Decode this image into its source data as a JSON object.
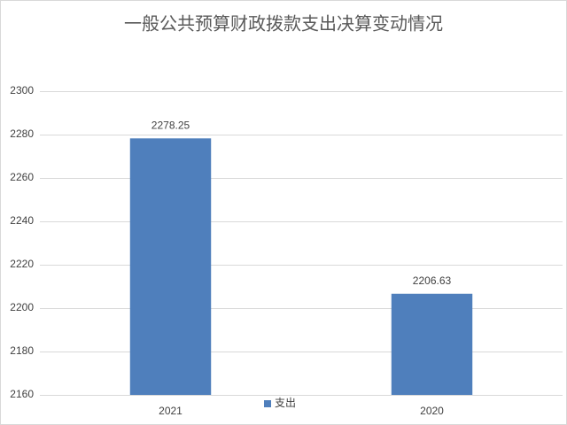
{
  "chart_data": {
    "type": "bar",
    "title": "一般公共预算财政拨款支出决算变动情况",
    "categories": [
      "2021",
      "2020"
    ],
    "series": [
      {
        "name": "支出",
        "color": "#4f7fbc",
        "values": [
          2278.25,
          2206.63
        ]
      }
    ],
    "ylim": [
      2160,
      2300
    ],
    "yticks": [
      2160,
      2180,
      2200,
      2220,
      2240,
      2260,
      2280,
      2300
    ],
    "grid": true,
    "legend": "bottom"
  }
}
